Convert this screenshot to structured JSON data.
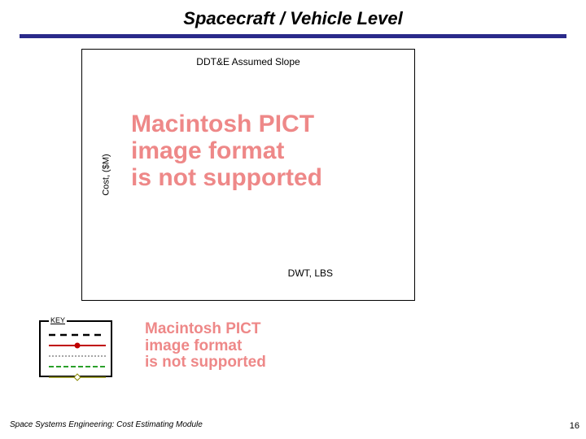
{
  "title": "Spacecraft / Vehicle Level",
  "title_bar_color": "#2a2a8a",
  "chart": {
    "title": "DDT&E Assumed Slope",
    "y_label": "Cost, ($M)",
    "x_label": "DWT, LBS",
    "placeholder_color": "#ee8888",
    "placeholder_lines": [
      "Macintosh PICT",
      "image format",
      "is not supported"
    ]
  },
  "key": {
    "label": "KEY",
    "rows": [
      {
        "stroke": "#000000",
        "dash": "8,6",
        "width": 2.5,
        "marker": null
      },
      {
        "stroke": "#c00000",
        "dash": "none",
        "width": 2,
        "marker": "circle",
        "marker_fill": "#c00000"
      },
      {
        "stroke": "#888888",
        "dash": "2,2",
        "width": 1.5,
        "marker": null
      },
      {
        "stroke": "#2aa02a",
        "dash": "6,3",
        "width": 2,
        "marker": null
      },
      {
        "stroke": "#888800",
        "dash": "none",
        "width": 1.5,
        "marker": "diamond",
        "marker_fill": "#ffffff",
        "marker_stroke": "#888800"
      }
    ],
    "placeholder_color": "#ee8888",
    "placeholder_lines": [
      "Macintosh PICT",
      "image format",
      "is not supported"
    ]
  },
  "footer": "Space Systems Engineering: Cost Estimating Module",
  "page_number": "16"
}
